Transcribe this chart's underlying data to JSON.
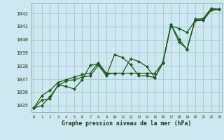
{
  "title": "Graphe pression niveau de la mer (hPa)",
  "background_color": "#cde8f0",
  "grid_color": "#a8cdd8",
  "line_color": "#1a5c1a",
  "ylim": [
    1034.5,
    1042.8
  ],
  "xlim": [
    -0.3,
    23.3
  ],
  "yticks": [
    1035,
    1036,
    1037,
    1038,
    1039,
    1040,
    1041,
    1042
  ],
  "xticks": [
    0,
    1,
    2,
    3,
    4,
    5,
    6,
    7,
    8,
    9,
    10,
    11,
    12,
    13,
    14,
    15,
    16,
    17,
    18,
    19,
    20,
    21,
    22,
    23
  ],
  "series1": [
    1034.8,
    1035.0,
    1035.65,
    1036.5,
    1036.85,
    1036.95,
    1037.15,
    1037.25,
    1038.05,
    1037.25,
    1038.85,
    1038.65,
    1038.1,
    1037.25,
    1037.25,
    1037.1,
    1038.2,
    1041.15,
    1039.8,
    1039.3,
    1041.55,
    1041.6,
    1042.4,
    1042.3
  ],
  "series2": [
    1034.8,
    1035.4,
    1035.5,
    1036.55,
    1036.45,
    1036.25,
    1036.95,
    1038.05,
    1038.15,
    1037.35,
    1037.45,
    1037.45,
    1038.55,
    1038.35,
    1037.95,
    1037.1,
    1038.3,
    1041.05,
    1040.85,
    1040.55,
    1041.45,
    1041.55,
    1042.25,
    1042.3
  ],
  "series3": [
    1034.8,
    1035.75,
    1036.15,
    1036.75,
    1036.95,
    1037.15,
    1037.35,
    1037.45,
    1038.25,
    1037.45,
    1037.45,
    1037.45,
    1037.45,
    1037.45,
    1037.45,
    1037.45,
    1038.25,
    1041.15,
    1040.05,
    1039.25,
    1041.45,
    1041.45,
    1042.25,
    1042.3
  ]
}
